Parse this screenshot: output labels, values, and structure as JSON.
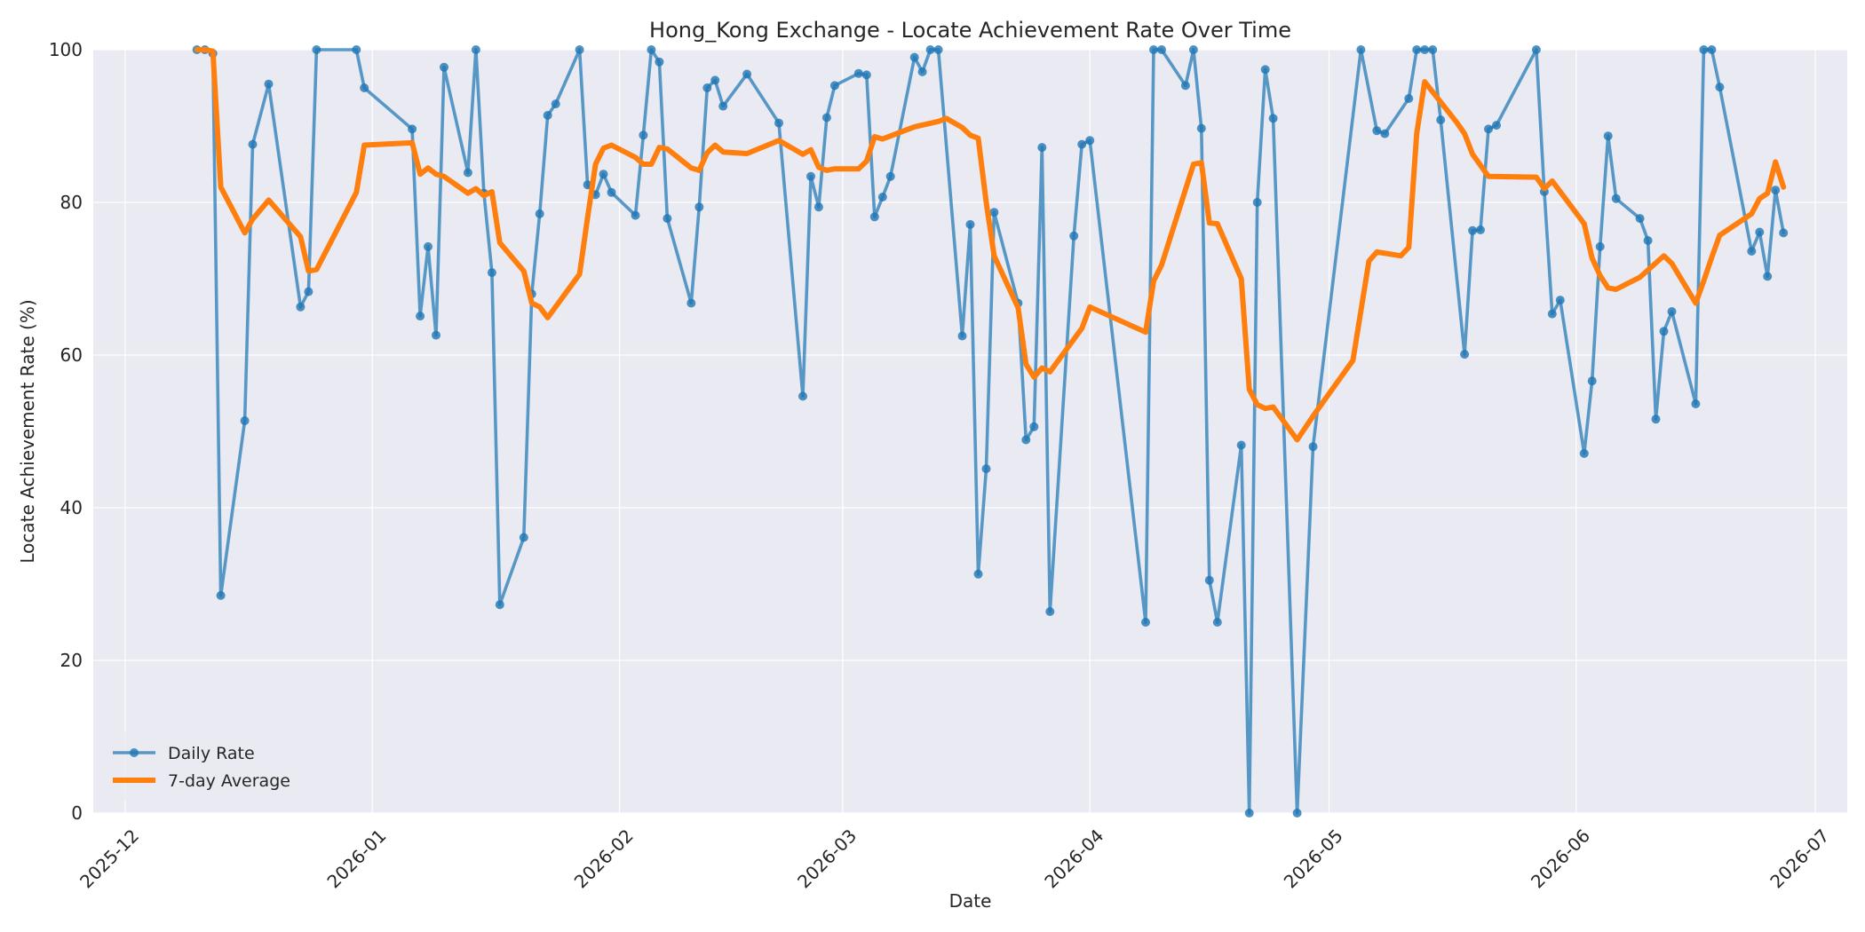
{
  "chart_data": {
    "type": "line",
    "title": "Hong_Kong Exchange - Locate Achievement Rate Over Time",
    "xlabel": "Date",
    "ylabel": "Locate Achievement Rate (%)",
    "xlim": [
      "2025-11-27",
      "2026-07-05"
    ],
    "ylim": [
      0,
      100
    ],
    "xticks": [
      "2025-12-01",
      "2026-01-01",
      "2026-02-01",
      "2026-03-01",
      "2026-04-01",
      "2026-05-01",
      "2026-06-01",
      "2026-07-01"
    ],
    "xtick_labels": [
      "2025-12",
      "2026-01",
      "2026-02",
      "2026-03",
      "2026-04",
      "2026-05",
      "2026-06",
      "2026-07"
    ],
    "yticks": [
      0,
      20,
      40,
      60,
      80,
      100
    ],
    "ytick_labels": [
      "0",
      "20",
      "40",
      "60",
      "80",
      "100"
    ],
    "grid": true,
    "legend_position": "lower-left",
    "series": [
      {
        "name": "Daily Rate",
        "color": "#1f77b4",
        "marker": "circle",
        "points": [
          [
            "2025-12-10",
            100
          ],
          [
            "2025-12-11",
            100
          ],
          [
            "2025-12-12",
            99.5
          ],
          [
            "2025-12-13",
            28.5
          ],
          [
            "2025-12-16",
            51.4
          ],
          [
            "2025-12-17",
            87.6
          ],
          [
            "2025-12-19",
            95.5
          ],
          [
            "2025-12-23",
            66.3
          ],
          [
            "2025-12-24",
            68.3
          ],
          [
            "2025-12-25",
            100
          ],
          [
            "2025-12-30",
            100
          ],
          [
            "2025-12-31",
            95
          ],
          [
            "2026-01-06",
            89.6
          ],
          [
            "2026-01-07",
            65.1
          ],
          [
            "2026-01-08",
            74.2
          ],
          [
            "2026-01-09",
            62.6
          ],
          [
            "2026-01-10",
            97.7
          ],
          [
            "2026-01-13",
            83.9
          ],
          [
            "2026-01-14",
            100
          ],
          [
            "2026-01-15",
            81.2
          ],
          [
            "2026-01-16",
            70.8
          ],
          [
            "2026-01-17",
            27.3
          ],
          [
            "2026-01-20",
            36.1
          ],
          [
            "2026-01-21",
            68
          ],
          [
            "2026-01-22",
            78.5
          ],
          [
            "2026-01-23",
            91.4
          ],
          [
            "2026-01-24",
            92.9
          ],
          [
            "2026-01-27",
            100
          ],
          [
            "2026-01-28",
            82.3
          ],
          [
            "2026-01-29",
            81
          ],
          [
            "2026-01-30",
            83.7
          ],
          [
            "2026-01-31",
            81.3
          ],
          [
            "2026-02-03",
            78.3
          ],
          [
            "2026-02-04",
            88.8
          ],
          [
            "2026-02-05",
            100
          ],
          [
            "2026-02-06",
            98.4
          ],
          [
            "2026-02-07",
            77.9
          ],
          [
            "2026-02-10",
            66.8
          ],
          [
            "2026-02-11",
            79.4
          ],
          [
            "2026-02-12",
            95
          ],
          [
            "2026-02-13",
            96
          ],
          [
            "2026-02-14",
            92.6
          ],
          [
            "2026-02-17",
            96.8
          ],
          [
            "2026-02-21",
            90.4
          ],
          [
            "2026-02-24",
            54.6
          ],
          [
            "2026-02-25",
            83.4
          ],
          [
            "2026-02-26",
            79.4
          ],
          [
            "2026-02-27",
            91.1
          ],
          [
            "2026-02-28",
            95.3
          ],
          [
            "2026-03-03",
            96.9
          ],
          [
            "2026-03-04",
            96.7
          ],
          [
            "2026-03-05",
            78.1
          ],
          [
            "2026-03-06",
            80.7
          ],
          [
            "2026-03-07",
            83.4
          ],
          [
            "2026-03-10",
            99
          ],
          [
            "2026-03-11",
            97.1
          ],
          [
            "2026-03-12",
            100
          ],
          [
            "2026-03-13",
            100
          ],
          [
            "2026-03-16",
            62.5
          ],
          [
            "2026-03-17",
            77.1
          ],
          [
            "2026-03-18",
            31.3
          ],
          [
            "2026-03-19",
            45.1
          ],
          [
            "2026-03-20",
            78.7
          ],
          [
            "2026-03-23",
            66.8
          ],
          [
            "2026-03-24",
            48.9
          ],
          [
            "2026-03-25",
            50.6
          ],
          [
            "2026-03-26",
            87.2
          ],
          [
            "2026-03-27",
            26.4
          ],
          [
            "2026-03-30",
            75.6
          ],
          [
            "2026-03-31",
            87.6
          ],
          [
            "2026-04-01",
            88.1
          ],
          [
            "2026-04-08",
            25
          ],
          [
            "2026-04-09",
            100
          ],
          [
            "2026-04-10",
            100
          ],
          [
            "2026-04-13",
            95.3
          ],
          [
            "2026-04-14",
            100
          ],
          [
            "2026-04-15",
            89.7
          ],
          [
            "2026-04-16",
            30.5
          ],
          [
            "2026-04-17",
            25
          ],
          [
            "2026-04-20",
            48.2
          ],
          [
            "2026-04-21",
            0
          ],
          [
            "2026-04-22",
            80
          ],
          [
            "2026-04-23",
            97.4
          ],
          [
            "2026-04-24",
            91
          ],
          [
            "2026-04-27",
            0
          ],
          [
            "2026-04-29",
            48
          ],
          [
            "2026-05-05",
            100
          ],
          [
            "2026-05-07",
            89.4
          ],
          [
            "2026-05-08",
            89
          ],
          [
            "2026-05-11",
            93.6
          ],
          [
            "2026-05-12",
            100
          ],
          [
            "2026-05-13",
            100
          ],
          [
            "2026-05-14",
            100
          ],
          [
            "2026-05-15",
            90.8
          ],
          [
            "2026-05-18",
            60.1
          ],
          [
            "2026-05-19",
            76.3
          ],
          [
            "2026-05-20",
            76.4
          ],
          [
            "2026-05-21",
            89.6
          ],
          [
            "2026-05-22",
            90.1
          ],
          [
            "2026-05-27",
            100
          ],
          [
            "2026-05-28",
            81.4
          ],
          [
            "2026-05-29",
            65.4
          ],
          [
            "2026-05-30",
            67.2
          ],
          [
            "2026-06-02",
            47.1
          ],
          [
            "2026-06-03",
            56.6
          ],
          [
            "2026-06-04",
            74.2
          ],
          [
            "2026-06-05",
            88.7
          ],
          [
            "2026-06-06",
            80.5
          ],
          [
            "2026-06-09",
            77.9
          ],
          [
            "2026-06-10",
            75
          ],
          [
            "2026-06-11",
            51.6
          ],
          [
            "2026-06-12",
            63.1
          ],
          [
            "2026-06-13",
            65.7
          ],
          [
            "2026-06-16",
            53.6
          ],
          [
            "2026-06-17",
            100
          ],
          [
            "2026-06-18",
            100
          ],
          [
            "2026-06-19",
            95.1
          ],
          [
            "2026-06-23",
            73.6
          ],
          [
            "2026-06-24",
            76.1
          ],
          [
            "2026-06-25",
            70.3
          ],
          [
            "2026-06-26",
            81.6
          ],
          [
            "2026-06-27",
            76
          ]
        ]
      },
      {
        "name": "7-day Average",
        "color": "#ff7f0e",
        "marker": "none",
        "points": [
          [
            "2025-12-10",
            100
          ],
          [
            "2025-12-11",
            100
          ],
          [
            "2025-12-12",
            99.8
          ],
          [
            "2025-12-13",
            82
          ],
          [
            "2025-12-16",
            76
          ],
          [
            "2025-12-17",
            77.8
          ],
          [
            "2025-12-19",
            80.3
          ],
          [
            "2025-12-23",
            75.5
          ],
          [
            "2025-12-24",
            71
          ],
          [
            "2025-12-25",
            71.2
          ],
          [
            "2025-12-30",
            81.3
          ],
          [
            "2025-12-31",
            87.5
          ],
          [
            "2026-01-06",
            87.8
          ],
          [
            "2026-01-07",
            83.7
          ],
          [
            "2026-01-08",
            84.5
          ],
          [
            "2026-01-09",
            83.7
          ],
          [
            "2026-01-10",
            83.4
          ],
          [
            "2026-01-13",
            81.2
          ],
          [
            "2026-01-14",
            81.8
          ],
          [
            "2026-01-15",
            80.9
          ],
          [
            "2026-01-16",
            81.4
          ],
          [
            "2026-01-17",
            74.7
          ],
          [
            "2026-01-20",
            71
          ],
          [
            "2026-01-21",
            66.8
          ],
          [
            "2026-01-22",
            66.3
          ],
          [
            "2026-01-23",
            64.9
          ],
          [
            "2026-01-27",
            70.6
          ],
          [
            "2026-01-28",
            78
          ],
          [
            "2026-01-29",
            85
          ],
          [
            "2026-01-30",
            87.1
          ],
          [
            "2026-01-31",
            87.5
          ],
          [
            "2026-02-03",
            85.9
          ],
          [
            "2026-02-04",
            85
          ],
          [
            "2026-02-05",
            85
          ],
          [
            "2026-02-06",
            87.2
          ],
          [
            "2026-02-07",
            87
          ],
          [
            "2026-02-10",
            84.5
          ],
          [
            "2026-02-11",
            84.2
          ],
          [
            "2026-02-12",
            86.5
          ],
          [
            "2026-02-13",
            87.5
          ],
          [
            "2026-02-14",
            86.6
          ],
          [
            "2026-02-17",
            86.4
          ],
          [
            "2026-02-21",
            88.1
          ],
          [
            "2026-02-24",
            86.3
          ],
          [
            "2026-02-25",
            86.9
          ],
          [
            "2026-02-26",
            84.6
          ],
          [
            "2026-02-27",
            84.2
          ],
          [
            "2026-02-28",
            84.4
          ],
          [
            "2026-03-03",
            84.4
          ],
          [
            "2026-03-04",
            85.4
          ],
          [
            "2026-03-05",
            88.6
          ],
          [
            "2026-03-06",
            88.3
          ],
          [
            "2026-03-07",
            88.7
          ],
          [
            "2026-03-10",
            89.9
          ],
          [
            "2026-03-13",
            90.6
          ],
          [
            "2026-03-14",
            91
          ],
          [
            "2026-03-16",
            89.8
          ],
          [
            "2026-03-17",
            88.8
          ],
          [
            "2026-03-18",
            88.4
          ],
          [
            "2026-03-19",
            80
          ],
          [
            "2026-03-20",
            73
          ],
          [
            "2026-03-23",
            66.2
          ],
          [
            "2026-03-24",
            58.8
          ],
          [
            "2026-03-25",
            57.1
          ],
          [
            "2026-03-26",
            58.3
          ],
          [
            "2026-03-27",
            57.8
          ],
          [
            "2026-03-31",
            63.5
          ],
          [
            "2026-04-01",
            66.3
          ],
          [
            "2026-04-08",
            63
          ],
          [
            "2026-04-09",
            69.7
          ],
          [
            "2026-04-10",
            71.8
          ],
          [
            "2026-04-14",
            85
          ],
          [
            "2026-04-15",
            85.2
          ],
          [
            "2026-04-16",
            77.3
          ],
          [
            "2026-04-17",
            77.2
          ],
          [
            "2026-04-20",
            70
          ],
          [
            "2026-04-21",
            55.5
          ],
          [
            "2026-04-22",
            53.5
          ],
          [
            "2026-04-23",
            53
          ],
          [
            "2026-04-24",
            53.2
          ],
          [
            "2026-04-27",
            48.9
          ],
          [
            "2026-04-29",
            52
          ],
          [
            "2026-05-04",
            59.3
          ],
          [
            "2026-05-06",
            72.3
          ],
          [
            "2026-05-07",
            73.5
          ],
          [
            "2026-05-10",
            73
          ],
          [
            "2026-05-11",
            74.1
          ],
          [
            "2026-05-12",
            89
          ],
          [
            "2026-05-13",
            95.8
          ],
          [
            "2026-05-17",
            90.5
          ],
          [
            "2026-05-18",
            89
          ],
          [
            "2026-05-19",
            86.3
          ],
          [
            "2026-05-21",
            83.4
          ],
          [
            "2026-05-27",
            83.3
          ],
          [
            "2026-05-28",
            81.8
          ],
          [
            "2026-05-29",
            82.8
          ],
          [
            "2026-06-02",
            77.2
          ],
          [
            "2026-06-03",
            72.7
          ],
          [
            "2026-06-04",
            70.4
          ],
          [
            "2026-06-05",
            68.8
          ],
          [
            "2026-06-06",
            68.6
          ],
          [
            "2026-06-09",
            70.2
          ],
          [
            "2026-06-12",
            73
          ],
          [
            "2026-06-13",
            72
          ],
          [
            "2026-06-16",
            66.8
          ],
          [
            "2026-06-17",
            69.7
          ],
          [
            "2026-06-18",
            72.8
          ],
          [
            "2026-06-19",
            75.7
          ],
          [
            "2026-06-23",
            78.5
          ],
          [
            "2026-06-24",
            80.5
          ],
          [
            "2026-06-25",
            81.2
          ],
          [
            "2026-06-26",
            85.3
          ],
          [
            "2026-06-27",
            82
          ]
        ]
      }
    ]
  }
}
